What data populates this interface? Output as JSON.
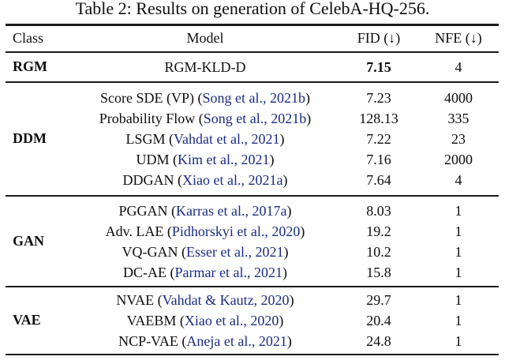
{
  "title": "Table 2: Results on generation of CelebA-HQ-256.",
  "colors": {
    "citation_blue": "#1b2c85",
    "text_black": "#0e0e0e",
    "rule_black": "#1a1a1a"
  },
  "header": {
    "class": "Class",
    "model": "Model",
    "fid": "FID (↓)",
    "nfe": "NFE (↓)"
  },
  "sections": [
    {
      "class": "RGM",
      "rows": [
        {
          "prefix": "RGM-KLD-D",
          "cite": "",
          "suffix": "",
          "fid": "7.15",
          "nfe": "4"
        }
      ]
    },
    {
      "class": "DDM",
      "rows": [
        {
          "prefix": "Score SDE (VP) (",
          "cite": "Song et al., 2021b",
          "suffix": ")",
          "fid": "7.23",
          "nfe": "4000"
        },
        {
          "prefix": "Probability Flow (",
          "cite": "Song et al., 2021b",
          "suffix": ")",
          "fid": "128.13",
          "nfe": "335"
        },
        {
          "prefix": "LSGM (",
          "cite": "Vahdat et al., 2021",
          "suffix": ")",
          "fid": "7.22",
          "nfe": "23"
        },
        {
          "prefix": "UDM (",
          "cite": "Kim et al., 2021",
          "suffix": ")",
          "fid": "7.16",
          "nfe": "2000"
        },
        {
          "prefix": "DDGAN (",
          "cite": "Xiao et al., 2021a",
          "suffix": ")",
          "fid": "7.64",
          "nfe": "4"
        }
      ]
    },
    {
      "class": "GAN",
      "rows": [
        {
          "prefix": "PGGAN (",
          "cite": "Karras et al., 2017a",
          "suffix": ")",
          "fid": "8.03",
          "nfe": "1"
        },
        {
          "prefix": "Adv. LAE (",
          "cite": "Pidhorskyi et al., 2020",
          "suffix": ")",
          "fid": "19.2",
          "nfe": "1"
        },
        {
          "prefix": "VQ-GAN (",
          "cite": "Esser et al., 2021",
          "suffix": ")",
          "fid": "10.2",
          "nfe": "1"
        },
        {
          "prefix": "DC-AE (",
          "cite": "Parmar et al., 2021",
          "suffix": ")",
          "fid": "15.8",
          "nfe": "1"
        }
      ]
    },
    {
      "class": "VAE",
      "rows": [
        {
          "prefix": "NVAE (",
          "cite": "Vahdat & Kautz, 2020",
          "suffix": ")",
          "fid": "29.7",
          "nfe": "1"
        },
        {
          "prefix": "VAEBM (",
          "cite": "Xiao et al., 2020",
          "suffix": ")",
          "fid": "20.4",
          "nfe": "1"
        },
        {
          "prefix": "NCP-VAE (",
          "cite": "Aneja et al., 2021",
          "suffix": ")",
          "fid": "24.8",
          "nfe": "1"
        }
      ]
    }
  ]
}
